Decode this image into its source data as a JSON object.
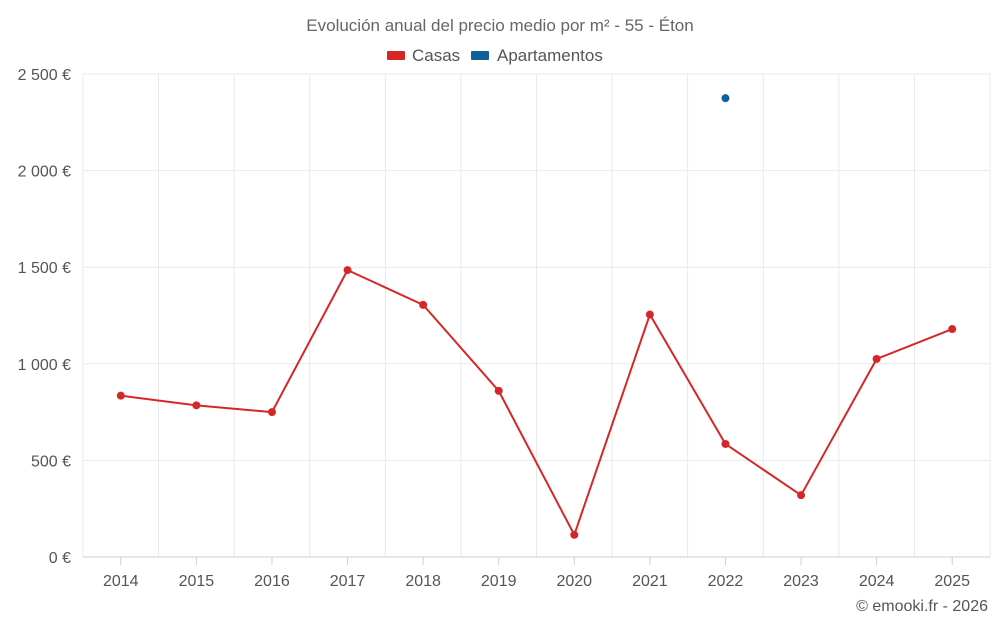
{
  "chart_data": {
    "type": "line",
    "title": "Evolución anual del precio medio por m² - 55 - Éton",
    "categories": [
      "2014",
      "2015",
      "2016",
      "2017",
      "2018",
      "2019",
      "2020",
      "2021",
      "2022",
      "2023",
      "2024",
      "2025"
    ],
    "series": [
      {
        "name": "Casas",
        "color": "#d62728",
        "values": [
          835,
          785,
          750,
          1485,
          1305,
          860,
          115,
          1255,
          585,
          320,
          1025,
          1180
        ]
      },
      {
        "name": "Apartamentos",
        "color": "#0f5f9a",
        "values": [
          null,
          null,
          null,
          null,
          null,
          null,
          null,
          null,
          2375,
          null,
          null,
          null
        ]
      }
    ],
    "ylim": [
      0,
      2500
    ],
    "yticks": [
      0,
      500,
      1000,
      1500,
      2000,
      2500
    ],
    "ytick_labels": [
      "0 €",
      "500 €",
      "1 000 €",
      "1 500 €",
      "2 000 €",
      "2 500 €"
    ],
    "legend_position": "top-center",
    "grid": true,
    "credit": "© emooki.fr - 2026"
  }
}
